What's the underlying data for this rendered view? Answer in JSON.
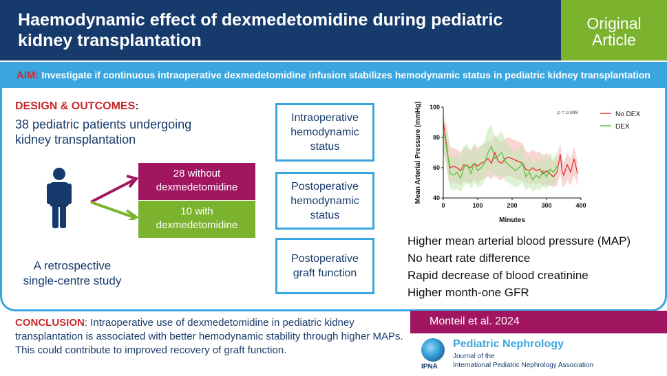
{
  "header": {
    "title": "Haemodynamic effect of dexmedetomidine during pediatric kidney transplantation"
  },
  "badge": {
    "line1": "Original",
    "line2": "Article"
  },
  "aim": {
    "label": "AIM:",
    "text": "Investigate if continuous intraoperative dexmedetomidine infusion stabilizes hemodynamic status in pediatric kidney transplantation"
  },
  "design": {
    "label": "DESIGN & OUTCOMES",
    "colon": ":",
    "patients": "38 pediatric patients undergoing kidney transplantation",
    "group_without_line1": "28 without",
    "group_without_line2": "dexmedetomidine",
    "group_with_line1": "10 with",
    "group_with_line2": "dexmedetomidine",
    "study_line1": "A retrospective",
    "study_line2": "single-centre study"
  },
  "outcomes": [
    {
      "line1": "Intraoperative",
      "line2": "hemodynamic",
      "line3": "status"
    },
    {
      "line1": "Postoperative",
      "line2": "hemodynamic",
      "line3": "status"
    },
    {
      "line1": "Postoperative",
      "line2": "graft function"
    }
  ],
  "findings": [
    "Higher mean arterial blood pressure (MAP)",
    "No heart rate difference",
    "Rapid decrease of blood creatinine",
    "Higher month-one GFR"
  ],
  "conclusion": {
    "label": "CONCLUSION",
    "text": ": Intraoperative use of dexmedetomidine in pediatric kidney transplantation is associated with better hemodynamic stability through higher MAPs. This could contribute to improved recovery of graft function."
  },
  "citation": "Monteil et al. 2024",
  "journal": {
    "name": "Pediatric Nephrology",
    "sub1": "Journal of the",
    "sub2": "International Pediatric Nephrology Association",
    "logo_text": "IPNA"
  },
  "colors": {
    "navy": "#163a6b",
    "sky": "#39a6df",
    "green": "#7bb32e",
    "magenta": "#a11561",
    "red": "#c9262b"
  },
  "chart_data": {
    "type": "line",
    "xlabel": "Minutes",
    "ylabel": "Mean Arterial Pressure (mmHg)",
    "xlim": [
      0,
      400
    ],
    "ylim": [
      40,
      100
    ],
    "x_ticks": [
      0,
      100,
      200,
      300,
      400
    ],
    "y_ticks": [
      40,
      60,
      80,
      100
    ],
    "annotation": "p = 0.039",
    "legend_position": "top-right",
    "series": [
      {
        "name": "No DEX",
        "color": "#e0342f",
        "band_color": "#f4b4b0",
        "x": [
          0,
          5,
          10,
          15,
          20,
          30,
          40,
          50,
          60,
          70,
          80,
          90,
          100,
          110,
          120,
          130,
          140,
          150,
          160,
          170,
          180,
          190,
          200,
          210,
          220,
          230,
          240,
          250,
          260,
          270,
          280,
          290,
          300,
          310,
          320,
          330,
          340,
          345,
          350,
          360,
          370,
          380,
          390
        ],
        "y": [
          90,
          82,
          74,
          65,
          60,
          61,
          60,
          58,
          62,
          61,
          60,
          63,
          61,
          63,
          64,
          66,
          63,
          70,
          64,
          63,
          66,
          67,
          66,
          65,
          64,
          63,
          59,
          58,
          60,
          58,
          59,
          56,
          58,
          56,
          54,
          57,
          69,
          58,
          55,
          62,
          57,
          66,
          56
        ],
        "lower": [
          72,
          66,
          60,
          52,
          49,
          50,
          50,
          48,
          51,
          50,
          50,
          52,
          50,
          52,
          53,
          54,
          52,
          56,
          52,
          52,
          54,
          55,
          54,
          53,
          52,
          52,
          50,
          49,
          50,
          49,
          50,
          48,
          49,
          48,
          47,
          48,
          56,
          49,
          47,
          52,
          48,
          55,
          48
        ],
        "upper": [
          96,
          92,
          88,
          80,
          74,
          73,
          72,
          70,
          74,
          73,
          72,
          75,
          73,
          75,
          76,
          78,
          76,
          82,
          78,
          77,
          79,
          80,
          79,
          78,
          77,
          76,
          71,
          70,
          72,
          70,
          71,
          67,
          70,
          67,
          64,
          68,
          76,
          66,
          63,
          70,
          66,
          74,
          64
        ]
      },
      {
        "name": "DEX",
        "color": "#57c443",
        "band_color": "#bfeab0",
        "x": [
          0,
          5,
          10,
          15,
          20,
          30,
          40,
          50,
          60,
          70,
          80,
          90,
          100,
          110,
          120,
          130,
          140,
          150,
          160,
          170,
          180,
          190,
          200,
          210,
          220,
          230,
          240,
          250,
          260,
          270,
          280,
          290,
          300,
          310,
          320,
          330
        ],
        "y": [
          82,
          80,
          72,
          65,
          56,
          55,
          57,
          53,
          60,
          62,
          56,
          63,
          58,
          60,
          63,
          70,
          74,
          66,
          68,
          70,
          64,
          62,
          60,
          58,
          60,
          63,
          54,
          57,
          52,
          55,
          53,
          58,
          54,
          59,
          57,
          61
        ],
        "lower": [
          70,
          68,
          60,
          52,
          46,
          45,
          46,
          44,
          48,
          50,
          46,
          50,
          47,
          48,
          51,
          56,
          59,
          53,
          55,
          56,
          51,
          50,
          48,
          47,
          48,
          50,
          45,
          47,
          44,
          46,
          45,
          48,
          46,
          49,
          48,
          52
        ],
        "upper": [
          92,
          90,
          84,
          78,
          68,
          66,
          70,
          66,
          74,
          76,
          68,
          77,
          71,
          74,
          78,
          86,
          88,
          80,
          82,
          84,
          78,
          75,
          72,
          70,
          72,
          76,
          64,
          68,
          62,
          66,
          63,
          70,
          64,
          70,
          66,
          70
        ]
      }
    ]
  }
}
